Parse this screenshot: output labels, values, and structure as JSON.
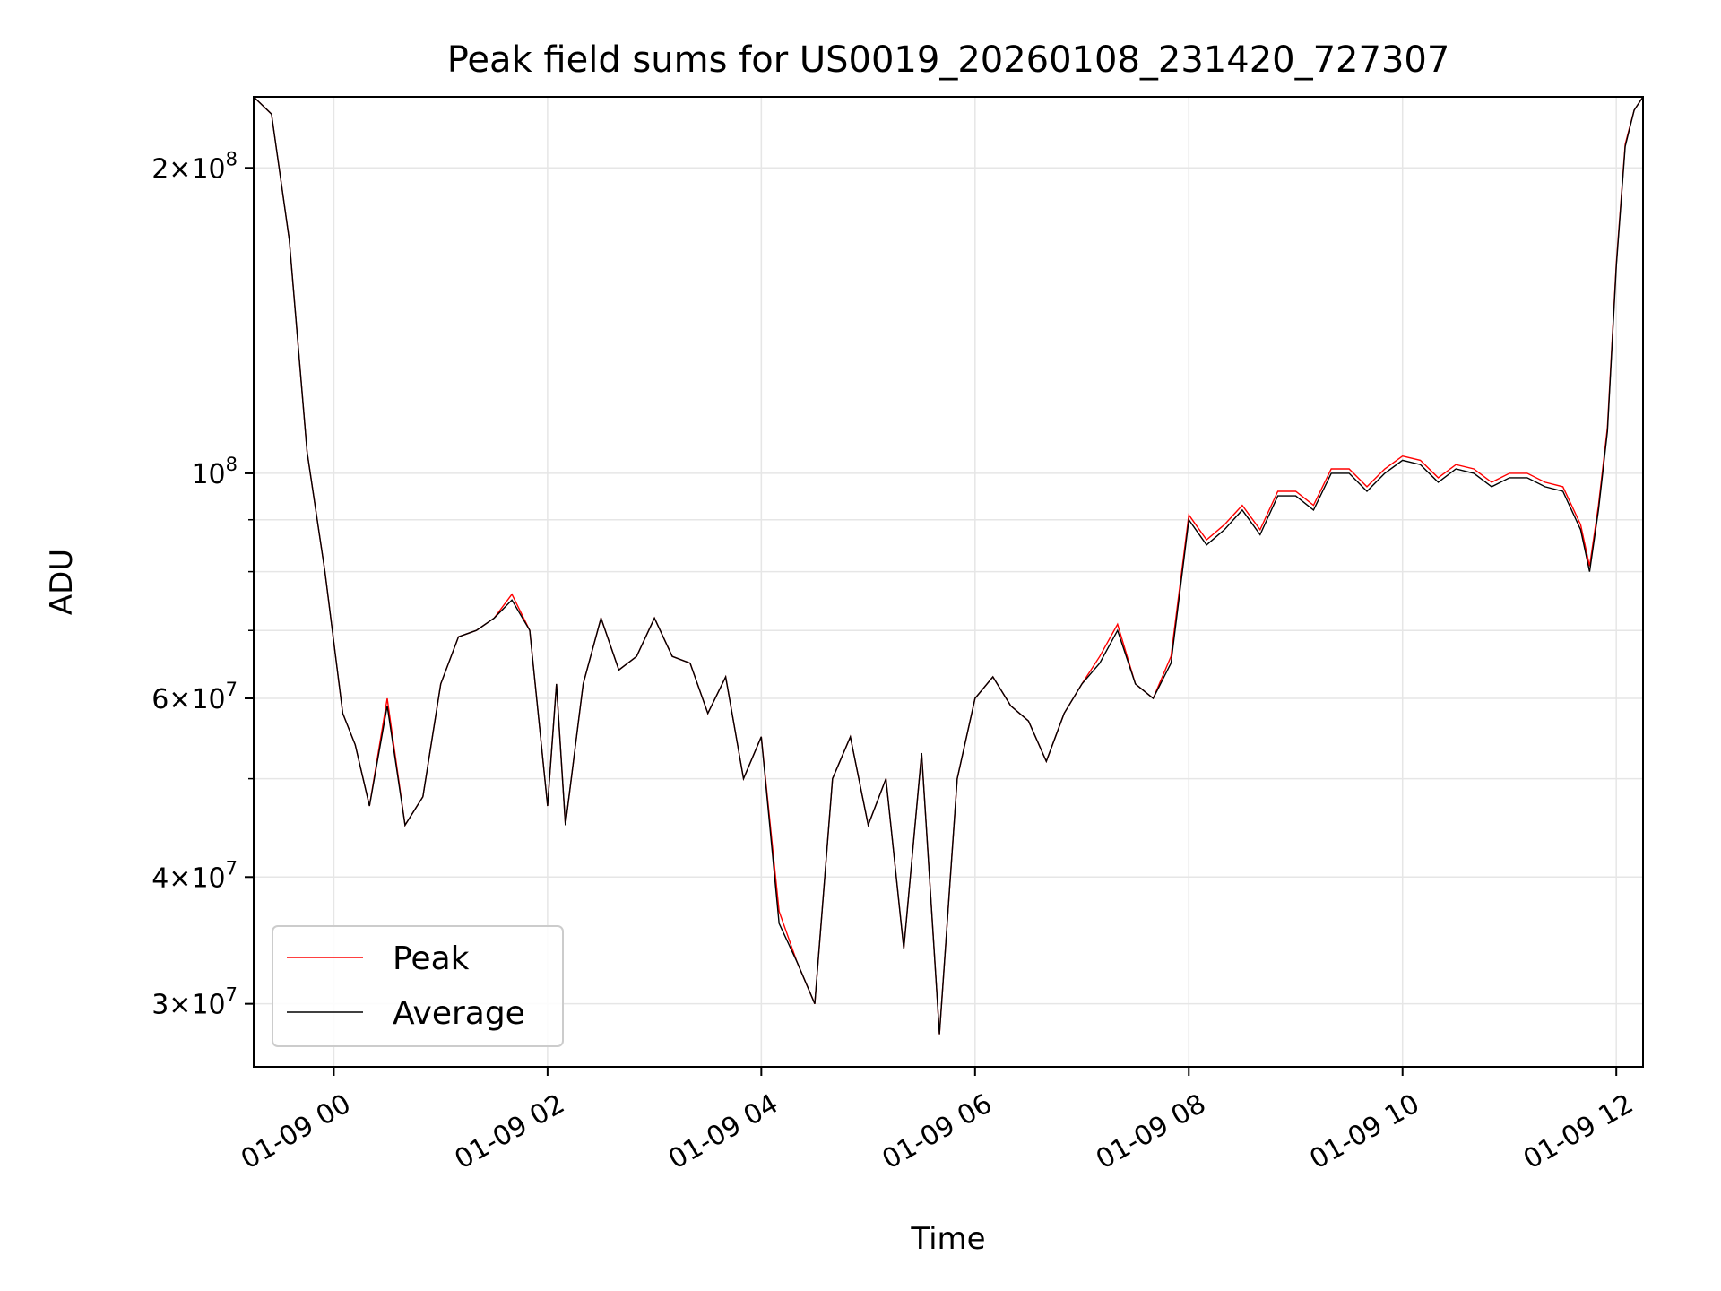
{
  "chart_data": {
    "type": "line",
    "title": "Peak field sums for US0019_20260108_231420_727307",
    "xlabel": "Time",
    "ylabel": "ADU",
    "yscale": "log",
    "xlim": [
      "2026-01-08 23:15",
      "2026-01-09 12:15"
    ],
    "ylim": [
      26000000,
      235000000
    ],
    "grid": true,
    "legend_position": "lower-left",
    "x_ticks": [
      "01-09 00",
      "01-09 02",
      "01-09 04",
      "01-09 06",
      "01-09 08",
      "01-09 10",
      "01-09 12"
    ],
    "y_ticks": [
      {
        "value": 30000000,
        "mantissa": "3",
        "exponent": "7"
      },
      {
        "value": 40000000,
        "mantissa": "4",
        "exponent": "7"
      },
      {
        "value": 60000000,
        "mantissa": "6",
        "exponent": "7"
      },
      {
        "value": 100000000,
        "mantissa": "",
        "exponent": "8"
      },
      {
        "value": 200000000,
        "mantissa": "2",
        "exponent": "8"
      }
    ],
    "series": [
      {
        "name": "Peak",
        "color": "#ff0000"
      },
      {
        "name": "Average",
        "color": "#000000"
      }
    ],
    "x": [
      "2026-01-08 23:15",
      "2026-01-08 23:25",
      "2026-01-08 23:35",
      "2026-01-08 23:45",
      "2026-01-08 23:55",
      "2026-01-09 00:05",
      "2026-01-09 00:12",
      "2026-01-09 00:20",
      "2026-01-09 00:30",
      "2026-01-09 00:40",
      "2026-01-09 00:50",
      "2026-01-09 01:00",
      "2026-01-09 01:10",
      "2026-01-09 01:20",
      "2026-01-09 01:30",
      "2026-01-09 01:40",
      "2026-01-09 01:50",
      "2026-01-09 02:00",
      "2026-01-09 02:05",
      "2026-01-09 02:10",
      "2026-01-09 02:20",
      "2026-01-09 02:30",
      "2026-01-09 02:40",
      "2026-01-09 02:50",
      "2026-01-09 03:00",
      "2026-01-09 03:10",
      "2026-01-09 03:20",
      "2026-01-09 03:30",
      "2026-01-09 03:40",
      "2026-01-09 03:50",
      "2026-01-09 04:00",
      "2026-01-09 04:10",
      "2026-01-09 04:20",
      "2026-01-09 04:30",
      "2026-01-09 04:40",
      "2026-01-09 04:50",
      "2026-01-09 05:00",
      "2026-01-09 05:10",
      "2026-01-09 05:20",
      "2026-01-09 05:30",
      "2026-01-09 05:40",
      "2026-01-09 05:50",
      "2026-01-09 06:00",
      "2026-01-09 06:10",
      "2026-01-09 06:20",
      "2026-01-09 06:30",
      "2026-01-09 06:40",
      "2026-01-09 06:50",
      "2026-01-09 07:00",
      "2026-01-09 07:10",
      "2026-01-09 07:20",
      "2026-01-09 07:30",
      "2026-01-09 07:40",
      "2026-01-09 07:50",
      "2026-01-09 08:00",
      "2026-01-09 08:10",
      "2026-01-09 08:20",
      "2026-01-09 08:30",
      "2026-01-09 08:40",
      "2026-01-09 08:50",
      "2026-01-09 09:00",
      "2026-01-09 09:10",
      "2026-01-09 09:20",
      "2026-01-09 09:30",
      "2026-01-09 09:40",
      "2026-01-09 09:50",
      "2026-01-09 10:00",
      "2026-01-09 10:10",
      "2026-01-09 10:20",
      "2026-01-09 10:30",
      "2026-01-09 10:40",
      "2026-01-09 10:50",
      "2026-01-09 11:00",
      "2026-01-09 11:10",
      "2026-01-09 11:20",
      "2026-01-09 11:30",
      "2026-01-09 11:40",
      "2026-01-09 11:45",
      "2026-01-09 11:50",
      "2026-01-09 11:55",
      "2026-01-09 12:00",
      "2026-01-09 12:05",
      "2026-01-09 12:10",
      "2026-01-09 12:15"
    ],
    "average": [
      235000000,
      226000000,
      170000000,
      105000000,
      80000000,
      58000000,
      54000000,
      47000000,
      59000000,
      45000000,
      48000000,
      62000000,
      69000000,
      70000000,
      72000000,
      75000000,
      70000000,
      47000000,
      62000000,
      45000000,
      62000000,
      72000000,
      64000000,
      66000000,
      72000000,
      66000000,
      65000000,
      58000000,
      63000000,
      50000000,
      55000000,
      36000000,
      33000000,
      30000000,
      50000000,
      55000000,
      45000000,
      50000000,
      34000000,
      53000000,
      28000000,
      50000000,
      60000000,
      63000000,
      59000000,
      57000000,
      52000000,
      58000000,
      62000000,
      65000000,
      70000000,
      62000000,
      60000000,
      65000000,
      90000000,
      85000000,
      88000000,
      92000000,
      87000000,
      95000000,
      95000000,
      92000000,
      100000000,
      100000000,
      96000000,
      100000000,
      103000000,
      102000000,
      98000000,
      101000000,
      100000000,
      97000000,
      99000000,
      99000000,
      97000000,
      96000000,
      88000000,
      80000000,
      92000000,
      110000000,
      160000000,
      210000000,
      228000000,
      235000000
    ],
    "peak": [
      235000000,
      226000000,
      170000000,
      105000000,
      80000000,
      58000000,
      54000000,
      47000000,
      60000000,
      45000000,
      48000000,
      62000000,
      69000000,
      70000000,
      72000000,
      76000000,
      70000000,
      47000000,
      62000000,
      45000000,
      62000000,
      72000000,
      64000000,
      66000000,
      72000000,
      66000000,
      65000000,
      58000000,
      63000000,
      50000000,
      55000000,
      37000000,
      33000000,
      30000000,
      50000000,
      55000000,
      45000000,
      50000000,
      34000000,
      53000000,
      28000000,
      50000000,
      60000000,
      63000000,
      59000000,
      57000000,
      52000000,
      58000000,
      62000000,
      66000000,
      71000000,
      62000000,
      60000000,
      66000000,
      91000000,
      86000000,
      89000000,
      93000000,
      88000000,
      96000000,
      96000000,
      93000000,
      101000000,
      101000000,
      97000000,
      101000000,
      104000000,
      103000000,
      99000000,
      102000000,
      101000000,
      98000000,
      100000000,
      100000000,
      98000000,
      97000000,
      89000000,
      81000000,
      93000000,
      111000000,
      161000000,
      211000000,
      228000000,
      235000000
    ]
  }
}
